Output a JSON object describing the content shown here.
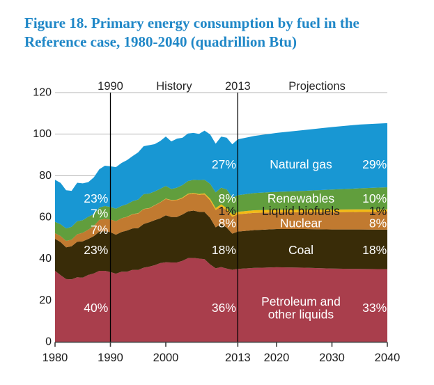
{
  "title": {
    "line1": "Figure 18. Primary energy consumption by fuel in the",
    "line2": "Reference case, 1980-2040 (quadrillion Btu)",
    "color": "#1f87c7"
  },
  "chart_data": {
    "type": "area",
    "stacked": true,
    "title": "Primary energy consumption by fuel, Reference case, 1980-2040",
    "unit": "quadrillion Btu",
    "xlabel": "",
    "ylabel": "",
    "xlim": [
      1980,
      2040
    ],
    "ylim": [
      0,
      120
    ],
    "xticks": [
      1980,
      1990,
      2000,
      2013,
      2020,
      2030,
      2040
    ],
    "yticks": [
      0,
      20,
      40,
      60,
      80,
      100,
      120
    ],
    "grid": "horizontal-above-areas",
    "grid_color": "#b5b5b5",
    "axis_color": "#3d3d3d",
    "x": [
      1980,
      1981,
      1982,
      1983,
      1984,
      1985,
      1986,
      1987,
      1988,
      1989,
      1990,
      1991,
      1992,
      1993,
      1994,
      1995,
      1996,
      1997,
      1998,
      1999,
      2000,
      2001,
      2002,
      2003,
      2004,
      2005,
      2006,
      2007,
      2008,
      2009,
      2010,
      2011,
      2012,
      2013,
      2016,
      2020,
      2025,
      2030,
      2035,
      2040
    ],
    "series": [
      {
        "name": "Petroleum and other liquids",
        "color": "#a93e4c",
        "values": [
          34.2,
          32.1,
          30.2,
          30.1,
          31.1,
          30.9,
          32.2,
          32.9,
          34.2,
          34.2,
          33.6,
          32.8,
          33.8,
          33.8,
          34.7,
          34.6,
          35.7,
          36.2,
          36.9,
          37.9,
          38.3,
          38.2,
          38.2,
          39.0,
          40.3,
          40.4,
          40.1,
          39.8,
          37.3,
          35.4,
          36.0,
          35.3,
          34.7,
          35.1,
          35.6,
          35.9,
          35.7,
          35.3,
          35.1,
          35.0
        ]
      },
      {
        "name": "Coal",
        "color": "#392c08",
        "values": [
          15.4,
          15.9,
          15.3,
          15.9,
          17.1,
          17.5,
          17.3,
          18.0,
          18.8,
          19.1,
          19.2,
          18.8,
          19.1,
          19.8,
          19.9,
          20.1,
          21.0,
          21.4,
          21.7,
          21.6,
          22.6,
          21.9,
          21.9,
          22.3,
          22.5,
          22.8,
          22.5,
          22.7,
          22.4,
          19.7,
          20.8,
          19.7,
          17.4,
          18.0,
          18.2,
          18.4,
          18.6,
          18.8,
          19.0,
          19.0
        ]
      },
      {
        "name": "Nuclear",
        "color": "#c17a30",
        "values": [
          2.7,
          2.9,
          3.1,
          3.2,
          3.6,
          4.1,
          4.5,
          4.9,
          5.7,
          5.9,
          6.1,
          6.5,
          6.6,
          6.5,
          6.8,
          7.1,
          7.2,
          6.7,
          7.1,
          7.6,
          7.9,
          8.0,
          8.1,
          7.9,
          8.2,
          8.2,
          8.2,
          8.5,
          8.4,
          8.4,
          8.4,
          8.3,
          8.1,
          8.3,
          8.3,
          8.0,
          8.1,
          8.3,
          8.4,
          8.5
        ]
      },
      {
        "name": "Liquid biofuels",
        "color": "#f2ba16",
        "values": [
          0,
          0,
          0,
          0,
          0,
          0,
          0,
          0,
          0,
          0,
          0,
          0,
          0,
          0.1,
          0.1,
          0.1,
          0.1,
          0.1,
          0.1,
          0.1,
          0.15,
          0.2,
          0.2,
          0.25,
          0.3,
          0.3,
          0.4,
          0.5,
          0.8,
          0.9,
          1.0,
          1.1,
          1.1,
          1.2,
          1.25,
          1.3,
          1.3,
          1.3,
          1.3,
          1.3
        ]
      },
      {
        "name": "Renewables",
        "color": "#619e3d",
        "values": [
          5.5,
          5.7,
          6.0,
          6.2,
          6.3,
          6.1,
          6.2,
          5.7,
          5.9,
          6.2,
          6.0,
          6.0,
          5.9,
          6.1,
          6.2,
          6.6,
          7.1,
          7.0,
          6.6,
          6.5,
          6.1,
          5.3,
          5.8,
          6.0,
          6.1,
          6.3,
          6.7,
          6.5,
          7.2,
          7.6,
          8.0,
          9.0,
          8.2,
          8.0,
          8.3,
          8.6,
          9.0,
          9.6,
          10.1,
          10.6
        ]
      },
      {
        "name": "Natural gas",
        "color": "#1897d3",
        "values": [
          20.2,
          19.9,
          18.4,
          17.3,
          18.5,
          17.7,
          16.7,
          17.7,
          18.5,
          19.4,
          19.6,
          20.0,
          20.7,
          21.2,
          21.7,
          22.7,
          23.1,
          23.3,
          22.8,
          23.0,
          23.8,
          22.9,
          23.6,
          22.8,
          22.9,
          22.6,
          22.2,
          23.7,
          23.8,
          23.4,
          24.6,
          24.9,
          25.6,
          26.9,
          27.5,
          28.4,
          29.3,
          30.1,
          30.7,
          30.9
        ]
      }
    ],
    "reference_lines": [
      {
        "x": 1990,
        "color": "#000000"
      },
      {
        "x": 2013,
        "color": "#000000"
      }
    ],
    "top_labels": [
      {
        "text": "1990",
        "x": 1990
      },
      {
        "text": "History",
        "x": 2001.5
      },
      {
        "text": "2013",
        "x": 2013
      },
      {
        "text": "Projections",
        "x": 2027.3
      }
    ],
    "annotations": [
      {
        "text": "23%",
        "x": 1989.6,
        "y": 69.0,
        "color": "#ffffff",
        "anchor": "end"
      },
      {
        "text": "7%",
        "x": 1989.6,
        "y": 61.9,
        "color": "#ffffff",
        "anchor": "end"
      },
      {
        "text": "7%",
        "x": 1989.6,
        "y": 54.0,
        "color": "#ffffff",
        "anchor": "end"
      },
      {
        "text": "23%",
        "x": 1989.6,
        "y": 44.3,
        "color": "#ffffff",
        "anchor": "end"
      },
      {
        "text": "40%",
        "x": 1989.6,
        "y": 16.4,
        "color": "#ffffff",
        "anchor": "end"
      },
      {
        "text": "27%",
        "x": 2012.7,
        "y": 85.5,
        "color": "#ffffff",
        "anchor": "end"
      },
      {
        "text": "8%",
        "x": 2012.7,
        "y": 69.0,
        "color": "#ffffff",
        "anchor": "end"
      },
      {
        "text": "1%",
        "x": 2012.7,
        "y": 63.0,
        "color": "#1a1a1a",
        "anchor": "end"
      },
      {
        "text": "8%",
        "x": 2012.7,
        "y": 57.2,
        "color": "#ffffff",
        "anchor": "end"
      },
      {
        "text": "18%",
        "x": 2012.7,
        "y": 44.3,
        "color": "#ffffff",
        "anchor": "end"
      },
      {
        "text": "36%",
        "x": 2012.7,
        "y": 16.4,
        "color": "#ffffff",
        "anchor": "end"
      },
      {
        "text": "Natural gas",
        "x": 2024.4,
        "y": 85.5,
        "color": "#ffffff",
        "anchor": "middle"
      },
      {
        "text": "Renewables",
        "x": 2024.4,
        "y": 69.0,
        "color": "#ffffff",
        "anchor": "middle"
      },
      {
        "text": "Liquid biofuels",
        "x": 2024.4,
        "y": 63.0,
        "color": "#1a1a1a",
        "anchor": "middle"
      },
      {
        "text": "Nuclear",
        "x": 2024.4,
        "y": 57.2,
        "color": "#ffffff",
        "anchor": "middle"
      },
      {
        "text": "Coal",
        "x": 2024.4,
        "y": 44.3,
        "color": "#ffffff",
        "anchor": "middle"
      },
      {
        "text": "Petroleum and",
        "x": 2024.4,
        "y": 19.4,
        "color": "#ffffff",
        "anchor": "middle"
      },
      {
        "text": "other liquids",
        "x": 2024.4,
        "y": 13.2,
        "color": "#ffffff",
        "anchor": "middle"
      },
      {
        "text": "29%",
        "x": 2039.9,
        "y": 85.5,
        "color": "#ffffff",
        "anchor": "end"
      },
      {
        "text": "10%",
        "x": 2039.9,
        "y": 69.0,
        "color": "#ffffff",
        "anchor": "end"
      },
      {
        "text": "1%",
        "x": 2039.9,
        "y": 63.0,
        "color": "#1a1a1a",
        "anchor": "end"
      },
      {
        "text": "8%",
        "x": 2039.9,
        "y": 57.2,
        "color": "#ffffff",
        "anchor": "end"
      },
      {
        "text": "18%",
        "x": 2039.9,
        "y": 44.3,
        "color": "#ffffff",
        "anchor": "end"
      },
      {
        "text": "33%",
        "x": 2039.9,
        "y": 16.4,
        "color": "#ffffff",
        "anchor": "end"
      }
    ]
  }
}
